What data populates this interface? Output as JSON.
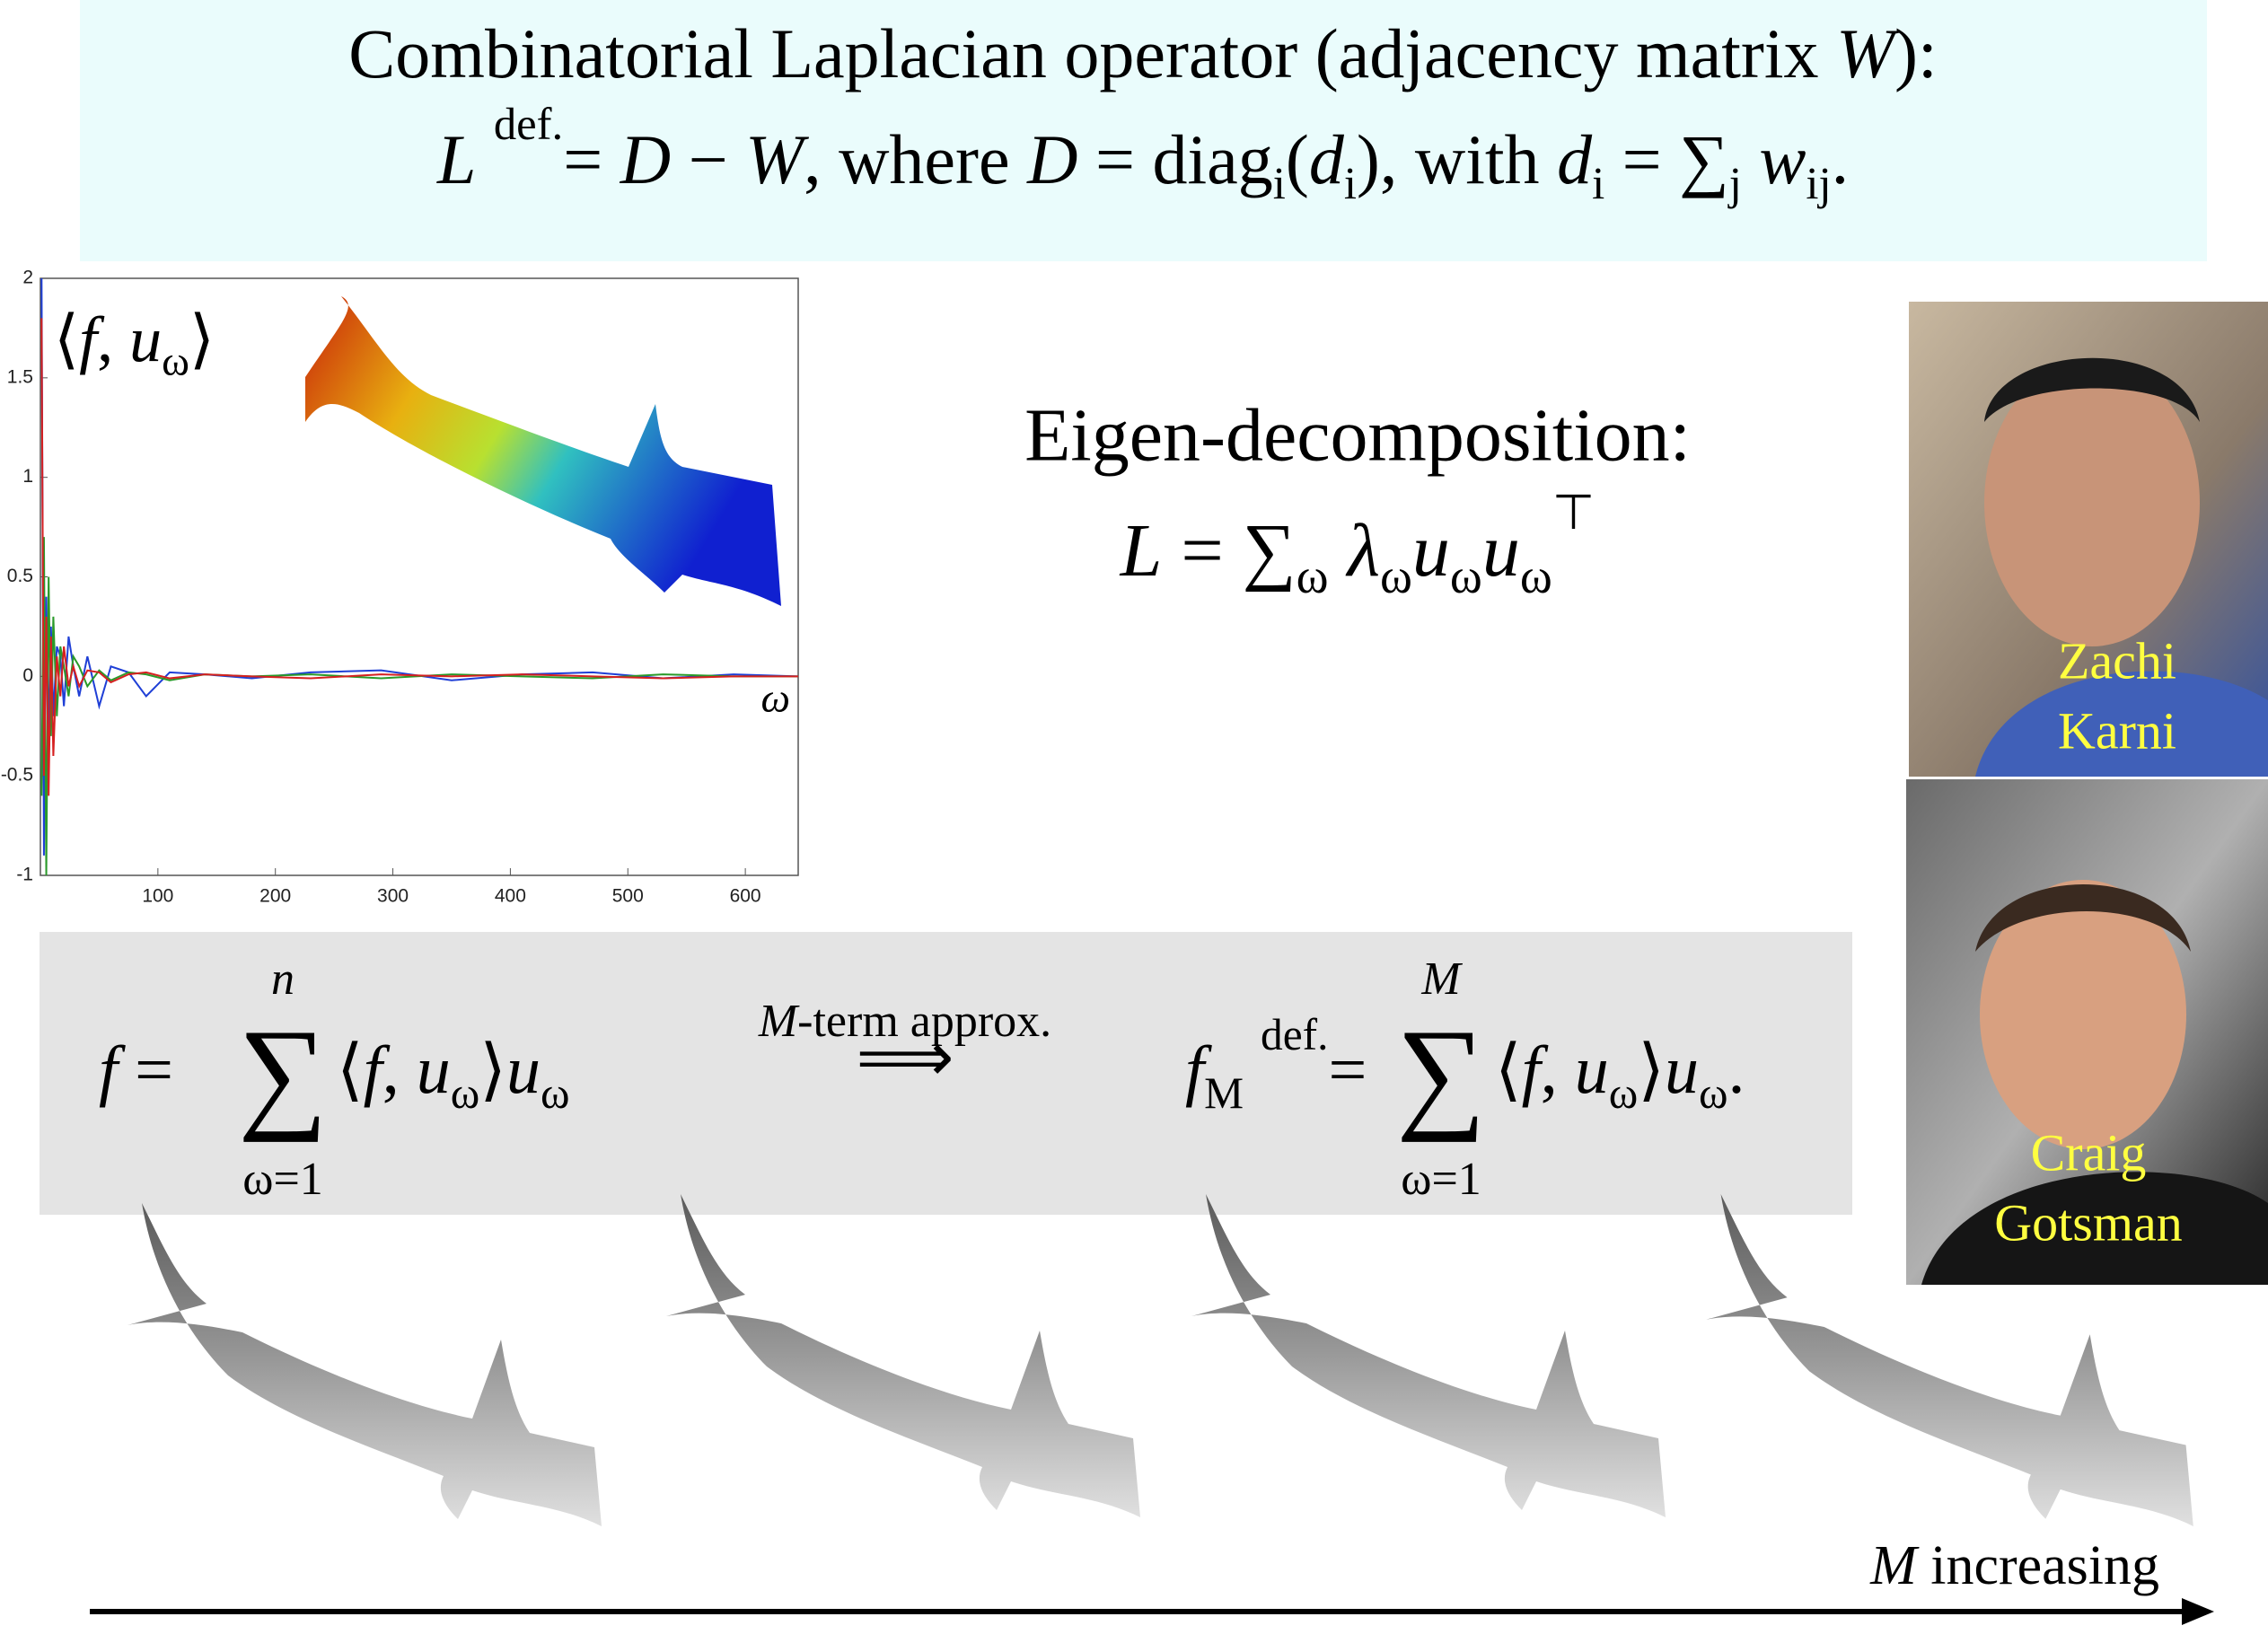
{
  "header": {
    "line1": [
      "Combinatorial Laplacian operator (adjacency matrix ",
      {
        "it": "W"
      },
      "):"
    ],
    "line2": [
      {
        "it": "L"
      },
      " ",
      {
        "sup": "def."
      },
      "= ",
      {
        "it": "D"
      },
      " − ",
      {
        "it": "W"
      },
      ",    where    ",
      {
        "it": "D"
      },
      " = diag",
      {
        "sub": "i"
      },
      "(",
      {
        "it": "d"
      },
      {
        "sub": "i"
      },
      "),    with    ",
      {
        "it": "d"
      },
      {
        "sub": "i"
      },
      " = ∑",
      {
        "sub": "j"
      },
      " ",
      {
        "it": "w"
      },
      {
        "sub": "ij"
      },
      "."
    ]
  },
  "plot": {
    "label": [
      "⟨",
      {
        "it": "f"
      },
      ", ",
      {
        "it": "u"
      },
      {
        "sub": "ω"
      },
      "⟩"
    ],
    "x_label": "ω",
    "xlim": [
      0,
      645
    ],
    "ylim": [
      -1,
      2
    ],
    "xticks": [
      100,
      200,
      300,
      400,
      500,
      600
    ],
    "yticks": [
      -1,
      -0.5,
      0,
      0.5,
      1,
      1.5,
      2
    ],
    "x": [
      1,
      3,
      5,
      7,
      9,
      11,
      14,
      17,
      20,
      24,
      28,
      33,
      40,
      50,
      60,
      75,
      90,
      110,
      140,
      180,
      230,
      290,
      350,
      410,
      470,
      530,
      590,
      645
    ],
    "series": [
      {
        "color": "#1f3fd6",
        "values": [
          2,
          -0.9,
          0.4,
          -0.3,
          0.25,
          -0.2,
          0.15,
          0.1,
          -0.15,
          0.2,
          0.05,
          -0.1,
          0.1,
          -0.15,
          0.05,
          0.02,
          -0.1,
          0.02,
          0.01,
          -0.01,
          0.02,
          0.03,
          -0.02,
          0.01,
          0.02,
          -0.01,
          0.01,
          0
        ]
      },
      {
        "color": "#2a9a2a",
        "values": [
          -0.6,
          0.7,
          -1,
          0.5,
          -0.3,
          0.3,
          -0.2,
          0.15,
          0.05,
          -0.1,
          0.1,
          0.05,
          -0.05,
          0.03,
          -0.02,
          0.02,
          0.01,
          -0.02,
          0.01,
          0,
          0.01,
          -0.01,
          0.01,
          0,
          -0.01,
          0.01,
          0,
          0
        ]
      },
      {
        "color": "#d62020",
        "values": [
          1.8,
          -0.5,
          0.3,
          -0.6,
          0.2,
          -0.4,
          0.1,
          -0.1,
          0.15,
          -0.05,
          0.05,
          -0.05,
          0.03,
          0.02,
          -0.03,
          0.01,
          0.02,
          -0.01,
          0.01,
          0,
          -0.01,
          0.01,
          0,
          0.01,
          0,
          -0.01,
          0,
          0
        ]
      }
    ]
  },
  "eigen": {
    "title": "Eigen-decomposition:",
    "formula": [
      {
        "it": "L"
      },
      " = ∑",
      {
        "sub": "ω"
      },
      " ",
      {
        "it": "λ"
      },
      {
        "sub": "ω"
      },
      {
        "it": "u"
      },
      {
        "sub": "ω"
      },
      {
        "it": "u"
      },
      {
        "sub": "ω"
      },
      {
        "sup": "⊤"
      }
    ]
  },
  "photos": [
    {
      "name_line1": "Zachi",
      "name_line2": "Karni"
    },
    {
      "name_line1": "Craig",
      "name_line2": "Gotsman"
    }
  ],
  "approx": {
    "left": {
      "lhs": [
        {
          "it": "f"
        },
        " ="
      ],
      "upper": "n",
      "lower": "ω=1",
      "body": [
        "⟨",
        {
          "it": "f"
        },
        ", ",
        {
          "it": "u"
        },
        {
          "sub": "ω"
        },
        "⟩",
        {
          "it": "u"
        },
        {
          "sub": "ω"
        }
      ]
    },
    "arrow_label": [
      {
        "it": "M"
      },
      "-term approx."
    ],
    "arrow_symbol": "⟹",
    "right": {
      "lhs": [
        {
          "it": "f"
        },
        {
          "sub": "M"
        },
        " ",
        {
          "sup": "def."
        },
        "="
      ],
      "upper": "M",
      "lower": "ω=1",
      "body": [
        "⟨",
        {
          "it": "f"
        },
        ", ",
        {
          "it": "u"
        },
        {
          "sub": "ω"
        },
        "⟩",
        {
          "it": "u"
        },
        {
          "sub": "ω"
        },
        "."
      ]
    }
  },
  "footer": {
    "label": [
      {
        "it": "M"
      },
      " increasing"
    ]
  }
}
